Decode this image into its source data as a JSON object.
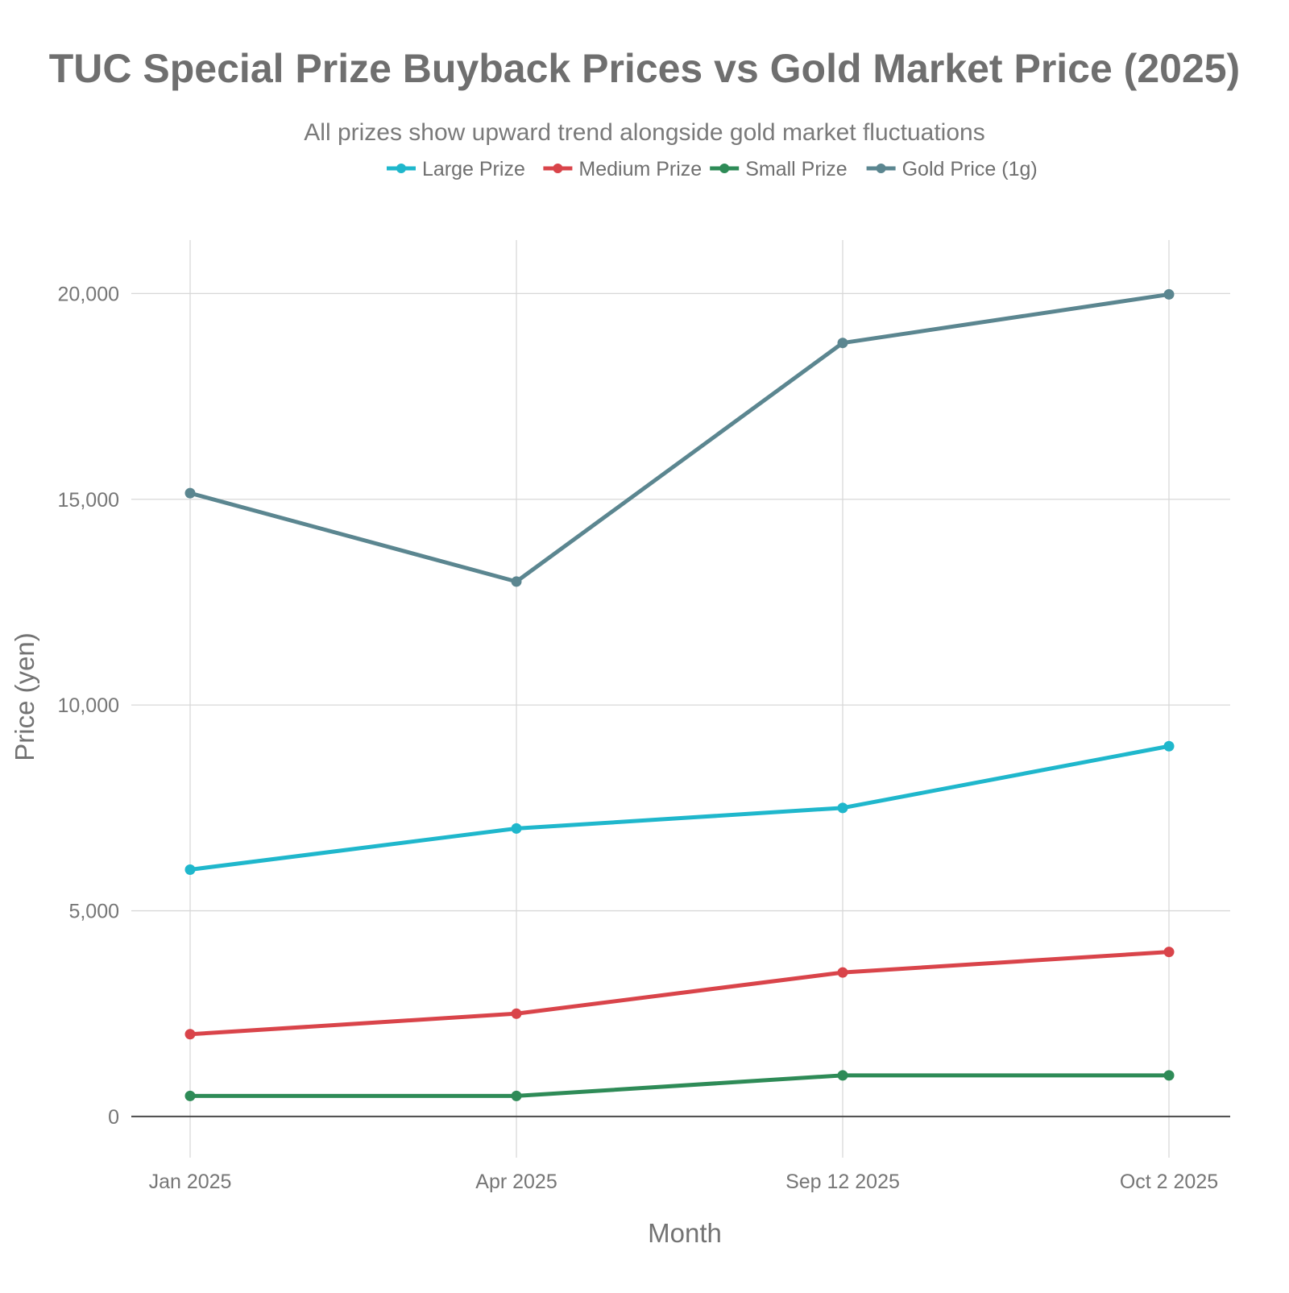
{
  "chart_data": {
    "type": "line",
    "title": "TUC Special Prize Buyback Prices vs Gold Market Price (2025)",
    "subtitle": "All prizes show upward trend alongside gold market fluctuations",
    "xlabel": "Month",
    "ylabel": "Price (yen)",
    "categories": [
      "Jan 2025",
      "Apr 2025",
      "Sep 12 2025",
      "Oct 2 2025"
    ],
    "ylim": [
      -1000,
      21300
    ],
    "yticks": [
      0,
      5000,
      10000,
      15000,
      20000
    ],
    "ytick_labels": [
      "0",
      "5,000",
      "10,000",
      "15,000",
      "20,000"
    ],
    "legend_position": "top-center",
    "grid": true,
    "series": [
      {
        "name": "Large Prize",
        "color": "#1fb7cc",
        "values": [
          6000,
          7000,
          7500,
          9000
        ]
      },
      {
        "name": "Medium Prize",
        "color": "#d9444a",
        "values": [
          2000,
          2500,
          3500,
          4000
        ]
      },
      {
        "name": "Small Prize",
        "color": "#2e8b57",
        "values": [
          500,
          500,
          1000,
          1000
        ]
      },
      {
        "name": "Gold Price (1g)",
        "color": "#5b8690",
        "values": [
          15150,
          13000,
          18800,
          19980
        ]
      }
    ]
  }
}
